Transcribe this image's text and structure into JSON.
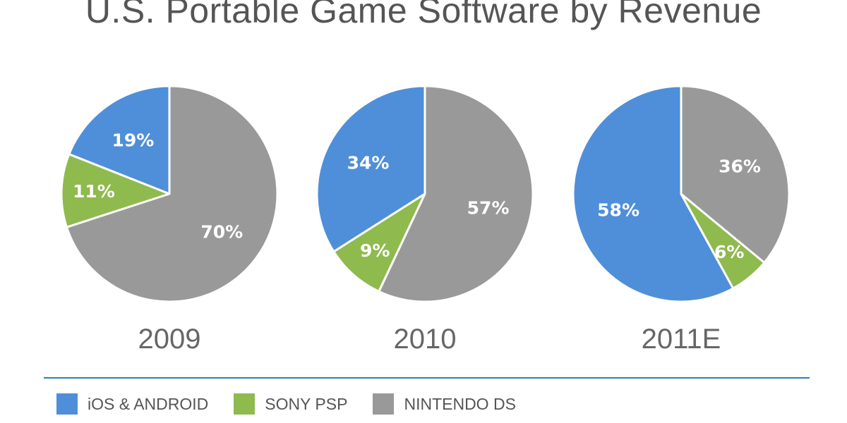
{
  "header": {
    "title": "U.S. Portable Game Software by Revenue"
  },
  "colors": {
    "ios_android": "#4f8fd9",
    "sony_psp": "#8fba4e",
    "nintendo_ds": "#999999",
    "legend_rule": "#2f7fb0"
  },
  "legend": {
    "items": [
      {
        "label": "iOS & ANDROID",
        "color": "#4f8fd9"
      },
      {
        "label": "SONY PSP",
        "color": "#8fba4e"
      },
      {
        "label": "NINTENDO DS",
        "color": "#999999"
      }
    ]
  },
  "chart_data": [
    {
      "type": "pie",
      "title": "2009",
      "categories": [
        "iOS & ANDROID",
        "SONY PSP",
        "NINTENDO DS"
      ],
      "values": [
        19,
        11,
        70
      ],
      "labels": [
        "19%",
        "11%",
        "70%"
      ]
    },
    {
      "type": "pie",
      "title": "2010",
      "categories": [
        "iOS & ANDROID",
        "SONY PSP",
        "NINTENDO DS"
      ],
      "values": [
        34,
        9,
        57
      ],
      "labels": [
        "34%",
        "9%",
        "57%"
      ]
    },
    {
      "type": "pie",
      "title": "2011E",
      "categories": [
        "iOS & ANDROID",
        "SONY PSP",
        "NINTENDO DS"
      ],
      "values": [
        58,
        6,
        36
      ],
      "labels": [
        "58%",
        "6%",
        "36%"
      ]
    }
  ]
}
